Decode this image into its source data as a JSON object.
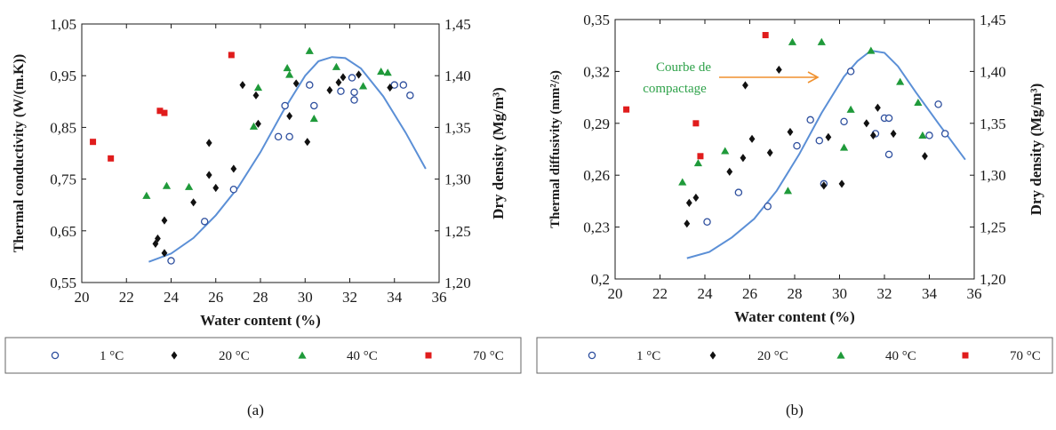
{
  "chart_data": [
    {
      "type": "scatter",
      "panel_label": "(a)",
      "xlabel": "Water content  (%)",
      "ylabel": "Thermal conductivity  (W/(m.K))",
      "y2label": "Dry density  (Mg/m³)",
      "x_ticks": [
        "20",
        "22",
        "24",
        "26",
        "28",
        "30",
        "32",
        "34",
        "36"
      ],
      "y_ticks": [
        "0,55",
        "0,65",
        "0,75",
        "0,85",
        "0,95",
        "1,05"
      ],
      "y2_ticks": [
        "1,20",
        "1,25",
        "1,30",
        "1,35",
        "1,40",
        "1,45"
      ],
      "xlim": [
        20,
        36
      ],
      "ylim": [
        0.55,
        1.05
      ],
      "y2lim": [
        1.2,
        1.45
      ],
      "legend_position": "bottom",
      "series": [
        {
          "name": "1 °C",
          "marker": "open-circle",
          "color": "#2e4f9e",
          "points": [
            [
              24.0,
              0.592
            ],
            [
              25.5,
              0.668
            ],
            [
              26.8,
              0.73
            ],
            [
              28.8,
              0.832
            ],
            [
              29.1,
              0.892
            ],
            [
              29.3,
              0.832
            ],
            [
              30.2,
              0.932
            ],
            [
              30.4,
              0.892
            ],
            [
              31.6,
              0.92
            ],
            [
              32.1,
              0.946
            ],
            [
              32.2,
              0.903
            ],
            [
              32.2,
              0.918
            ],
            [
              34.0,
              0.932
            ],
            [
              34.4,
              0.932
            ],
            [
              34.7,
              0.912
            ]
          ]
        },
        {
          "name": "20 °C",
          "marker": "diamond",
          "color": "#111111",
          "points": [
            [
              23.3,
              0.625
            ],
            [
              23.4,
              0.635
            ],
            [
              23.7,
              0.67
            ],
            [
              23.7,
              0.607
            ],
            [
              25.0,
              0.705
            ],
            [
              25.7,
              0.82
            ],
            [
              25.7,
              0.758
            ],
            [
              26.0,
              0.733
            ],
            [
              26.8,
              0.77
            ],
            [
              27.2,
              0.932
            ],
            [
              27.8,
              0.912
            ],
            [
              27.9,
              0.857
            ],
            [
              29.3,
              0.872
            ],
            [
              29.6,
              0.935
            ],
            [
              30.1,
              0.822
            ],
            [
              31.1,
              0.922
            ],
            [
              31.5,
              0.937
            ],
            [
              31.7,
              0.947
            ],
            [
              32.4,
              0.952
            ],
            [
              33.8,
              0.927
            ]
          ]
        },
        {
          "name": "40 °C",
          "marker": "triangle",
          "color": "#1f9a3a",
          "points": [
            [
              22.9,
              0.718
            ],
            [
              23.8,
              0.737
            ],
            [
              24.8,
              0.735
            ],
            [
              27.7,
              0.852
            ],
            [
              27.9,
              0.927
            ],
            [
              29.2,
              0.965
            ],
            [
              29.3,
              0.952
            ],
            [
              30.2,
              0.998
            ],
            [
              30.4,
              0.867
            ],
            [
              31.4,
              0.967
            ],
            [
              32.6,
              0.93
            ],
            [
              33.4,
              0.958
            ],
            [
              33.7,
              0.956
            ]
          ]
        },
        {
          "name": "70 °C",
          "marker": "square",
          "color": "#e01c1c",
          "points": [
            [
              20.5,
              0.822
            ],
            [
              21.3,
              0.79
            ],
            [
              23.5,
              0.882
            ],
            [
              23.7,
              0.878
            ],
            [
              26.7,
              0.99
            ]
          ]
        }
      ],
      "curve": {
        "name": "dry-density-fit",
        "axis": "y2",
        "color": "#5b8fd6",
        "points": [
          [
            23,
            1.22
          ],
          [
            24,
            1.228
          ],
          [
            25,
            1.243
          ],
          [
            26,
            1.265
          ],
          [
            27,
            1.292
          ],
          [
            28,
            1.326
          ],
          [
            29,
            1.365
          ],
          [
            30,
            1.4
          ],
          [
            30.6,
            1.414
          ],
          [
            31.2,
            1.418
          ],
          [
            31.8,
            1.417
          ],
          [
            32.5,
            1.407
          ],
          [
            33.5,
            1.38
          ],
          [
            34.5,
            1.345
          ],
          [
            35.4,
            1.31
          ]
        ]
      }
    },
    {
      "type": "scatter",
      "panel_label": "(b)",
      "xlabel": "Water content  (%)",
      "ylabel": "Thermal diffusivity  (mm²/s)",
      "y2label": "Dry density  (Mg/m³)",
      "annotation": {
        "text_line1": "Courbe de",
        "text_line2": "compactage",
        "color": "#2fa24a",
        "arrow_color": "#f0912e"
      },
      "x_ticks": [
        "20",
        "22",
        "24",
        "26",
        "28",
        "30",
        "32",
        "34",
        "36"
      ],
      "y_ticks": [
        "0,2",
        "0,23",
        "0,26",
        "0,29",
        "0,32",
        "0,35"
      ],
      "y2_ticks": [
        "1,20",
        "1,25",
        "1,30",
        "1,35",
        "1,40",
        "1,45"
      ],
      "xlim": [
        20,
        36
      ],
      "ylim": [
        0.2,
        0.35
      ],
      "y2lim": [
        1.2,
        1.45
      ],
      "legend_position": "bottom",
      "series": [
        {
          "name": "1 °C",
          "marker": "open-circle",
          "color": "#2e4f9e",
          "points": [
            [
              24.1,
              0.233
            ],
            [
              25.5,
              0.25
            ],
            [
              26.8,
              0.242
            ],
            [
              28.1,
              0.277
            ],
            [
              28.7,
              0.292
            ],
            [
              29.1,
              0.28
            ],
            [
              29.3,
              0.255
            ],
            [
              30.2,
              0.291
            ],
            [
              30.5,
              0.32
            ],
            [
              31.6,
              0.284
            ],
            [
              32.0,
              0.293
            ],
            [
              32.2,
              0.293
            ],
            [
              32.2,
              0.272
            ],
            [
              34.0,
              0.283
            ],
            [
              34.4,
              0.301
            ],
            [
              34.7,
              0.284
            ]
          ]
        },
        {
          "name": "20 °C",
          "marker": "diamond",
          "color": "#111111",
          "points": [
            [
              23.2,
              0.232
            ],
            [
              23.3,
              0.244
            ],
            [
              23.6,
              0.247
            ],
            [
              25.1,
              0.262
            ],
            [
              25.7,
              0.27
            ],
            [
              25.8,
              0.312
            ],
            [
              26.1,
              0.281
            ],
            [
              26.9,
              0.273
            ],
            [
              27.3,
              0.321
            ],
            [
              27.8,
              0.285
            ],
            [
              29.3,
              0.254
            ],
            [
              29.5,
              0.282
            ],
            [
              30.1,
              0.255
            ],
            [
              31.2,
              0.29
            ],
            [
              31.5,
              0.283
            ],
            [
              31.7,
              0.299
            ],
            [
              32.4,
              0.284
            ],
            [
              33.8,
              0.271
            ]
          ]
        },
        {
          "name": "40 °C",
          "marker": "triangle",
          "color": "#1f9a3a",
          "points": [
            [
              23.0,
              0.256
            ],
            [
              23.7,
              0.267
            ],
            [
              24.9,
              0.274
            ],
            [
              27.7,
              0.251
            ],
            [
              27.9,
              0.337
            ],
            [
              29.2,
              0.337
            ],
            [
              30.2,
              0.276
            ],
            [
              30.5,
              0.298
            ],
            [
              31.4,
              0.332
            ],
            [
              32.7,
              0.314
            ],
            [
              33.5,
              0.302
            ],
            [
              33.7,
              0.283
            ]
          ]
        },
        {
          "name": "70 °C",
          "marker": "square",
          "color": "#e01c1c",
          "points": [
            [
              20.5,
              0.298
            ],
            [
              23.6,
              0.29
            ],
            [
              23.8,
              0.271
            ],
            [
              26.7,
              0.341
            ]
          ]
        }
      ],
      "curve": {
        "name": "dry-density-fit",
        "axis": "y2",
        "color": "#5b8fd6",
        "points": [
          [
            23.2,
            1.22
          ],
          [
            24.2,
            1.226
          ],
          [
            25.2,
            1.24
          ],
          [
            26.2,
            1.258
          ],
          [
            27.2,
            1.285
          ],
          [
            28.2,
            1.32
          ],
          [
            29.2,
            1.36
          ],
          [
            30.2,
            1.395
          ],
          [
            30.8,
            1.41
          ],
          [
            31.4,
            1.42
          ],
          [
            32.0,
            1.418
          ],
          [
            32.6,
            1.405
          ],
          [
            33.4,
            1.38
          ],
          [
            34.4,
            1.35
          ],
          [
            35.6,
            1.315
          ]
        ]
      }
    }
  ]
}
